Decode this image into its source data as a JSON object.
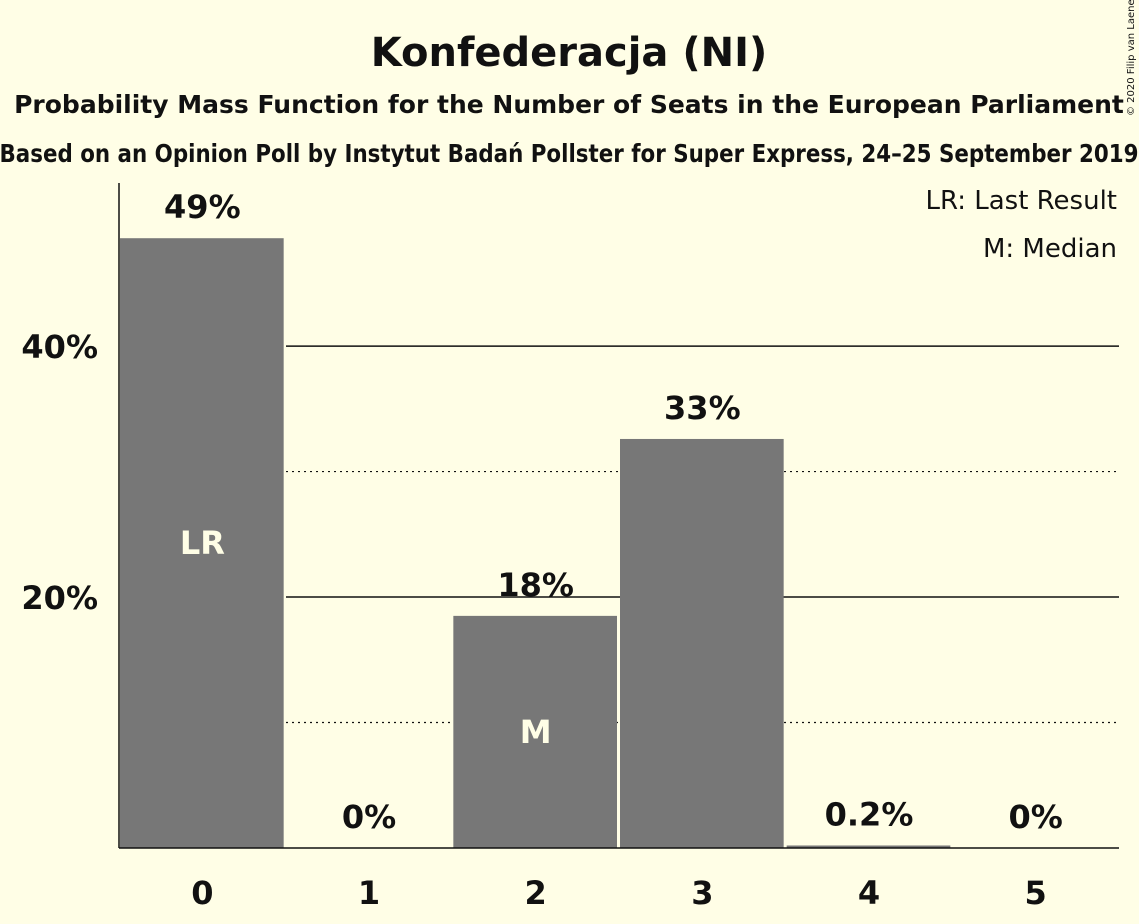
{
  "title": "Konfederacja (NI)",
  "subtitle": "Probability Mass Function for the Number of Seats in the European Parliament",
  "subtitle2": "Based on an Opinion Poll by Instytut Badań Pollster for Super Express, 24–25 September 2019",
  "credit": "© 2020 Filip van Laenen",
  "legend": {
    "last_result": "LR: Last Result",
    "median": "M: Median"
  },
  "colors": {
    "background": "#FFFEE6",
    "bar": "#777777",
    "text": "#111111",
    "bar_label": "#FFFEE6"
  },
  "chart_data": {
    "type": "bar",
    "categories": [
      "0",
      "1",
      "2",
      "3",
      "4",
      "5"
    ],
    "values": [
      48.6,
      0,
      18.5,
      32.6,
      0.2,
      0
    ],
    "value_labels": [
      "49%",
      "0%",
      "18%",
      "33%",
      "0.2%",
      "0%"
    ],
    "bar_marks": [
      "LR",
      "",
      "M",
      "",
      "",
      ""
    ],
    "ylim": [
      0,
      53
    ],
    "yticks": [
      {
        "value": 20,
        "label": "20%"
      },
      {
        "value": 40,
        "label": "40%"
      }
    ],
    "minor_gridlines": [
      10,
      30
    ],
    "grid": true,
    "legend_position": "top-right"
  }
}
